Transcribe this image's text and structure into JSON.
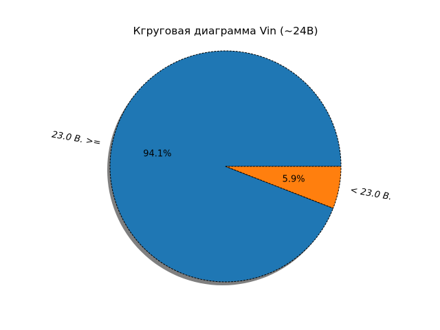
{
  "chart_data": {
    "type": "pie",
    "title": "Кгруговая диаграмма Vin (~24В)",
    "slices": [
      {
        "label": "23.0 В. >=",
        "value": 94.1,
        "pct_label": "94.1%",
        "color": "#1f77b4"
      },
      {
        "label": "< 23.0 В.",
        "value": 5.9,
        "pct_label": "5.9%",
        "color": "#ff7f0e"
      }
    ],
    "edge_color": "#000000",
    "edge_style": "dashed",
    "shadow": true,
    "shadow_color": "#7f7f7f"
  }
}
